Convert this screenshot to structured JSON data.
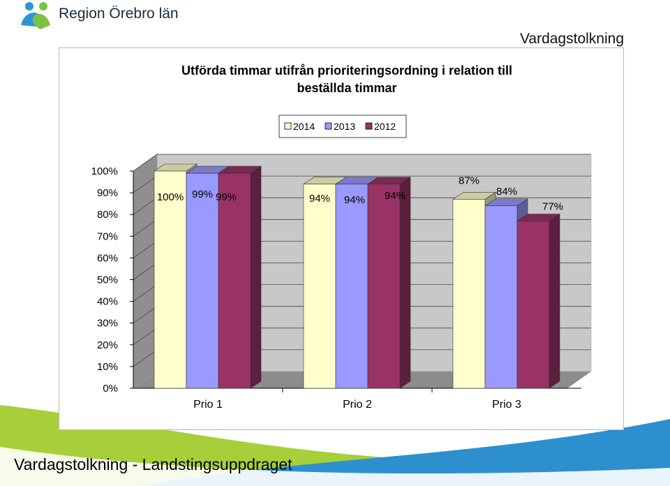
{
  "header": {
    "brand_name": "Region Örebro län",
    "slide_title": "Vardagstolkning"
  },
  "footer": {
    "text": "Vardagstolkning - Landstingsuppdraget"
  },
  "chart_data": {
    "type": "bar",
    "title": "Utförda timmar utifrån prioriteringsordning i relation till beställda timmar",
    "title_lines": [
      "Utförda timmar utifrån prioriteringsordning i relation till",
      "beställda timmar"
    ],
    "categories": [
      "Prio 1",
      "Prio 2",
      "Prio 3"
    ],
    "series": [
      {
        "name": "2014",
        "values": [
          100,
          94,
          87
        ],
        "labels": [
          "100%",
          "94%",
          "87%"
        ],
        "color": "#ffffcc"
      },
      {
        "name": "2013",
        "values": [
          99,
          94,
          84
        ],
        "labels": [
          "99%",
          "94%",
          "84%"
        ],
        "color": "#9999ff"
      },
      {
        "name": "2012",
        "values": [
          99,
          94,
          77
        ],
        "labels": [
          "99%",
          "94%",
          "77%"
        ],
        "color": "#993366"
      }
    ],
    "ylim": [
      0,
      100
    ],
    "yticks": [
      "0%",
      "10%",
      "20%",
      "30%",
      "40%",
      "50%",
      "60%",
      "70%",
      "80%",
      "90%",
      "100%"
    ],
    "legend_position": "top",
    "grid": true,
    "three_d": true,
    "xlabel": "",
    "ylabel": ""
  },
  "colors": {
    "brand_blue": "#1f8fd0",
    "brand_green": "#7dc242",
    "band_green": "#a6cf3a",
    "band_blue": "#2e8fcf",
    "wall": "#c8c8c8",
    "floor": "#8c8c8c"
  }
}
